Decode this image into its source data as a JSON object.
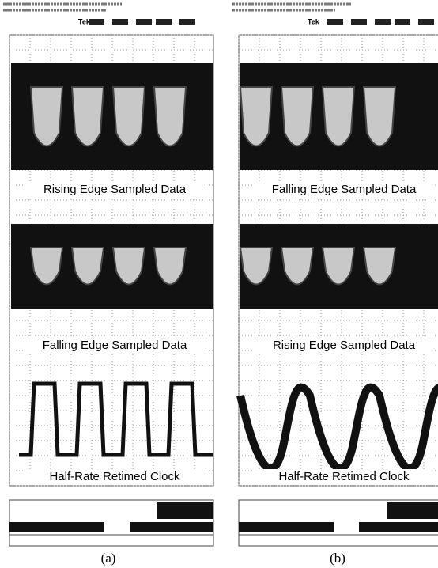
{
  "figure": {
    "panels": [
      {
        "label": "(a)",
        "tek": "Tek",
        "traces": [
          "Rising Edge Sampled Data",
          "Falling Edge Sampled Data",
          "Half-Rate Retimed Clock"
        ]
      },
      {
        "label": "(b)",
        "tek": "Tek",
        "traces": [
          "Falling Edge Sampled Data",
          "Rising Edge Sampled Data",
          "Half-Rate Retimed Clock"
        ]
      }
    ]
  }
}
